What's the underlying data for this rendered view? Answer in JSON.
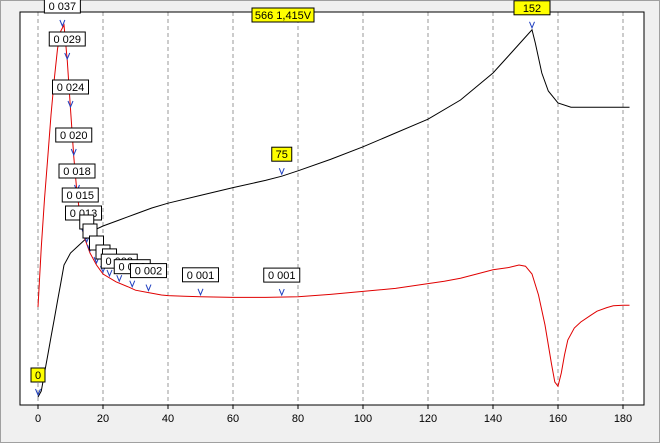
{
  "chart_data": {
    "type": "line",
    "title": "",
    "xlabel": "",
    "ylabel": "",
    "xlim": [
      0,
      182
    ],
    "xticks": [
      0,
      20,
      40,
      60,
      80,
      100,
      120,
      140,
      160,
      180
    ],
    "grid": "vertical dashed",
    "cursor_label": "566 1,415V",
    "colors": {
      "black_series": "#000000",
      "red_series": "#e00000",
      "highlight_tag": "#ffff00",
      "plain_tag": "#ffffff"
    },
    "series": [
      {
        "color": "#000000",
        "points": [
          [
            0,
            0
          ],
          [
            1,
            1
          ],
          [
            2,
            4
          ],
          [
            3,
            7
          ],
          [
            4,
            10
          ],
          [
            5,
            13
          ],
          [
            6,
            16
          ],
          [
            7,
            19
          ],
          [
            8,
            22
          ],
          [
            9,
            23
          ],
          [
            10,
            24
          ],
          [
            12,
            25
          ],
          [
            14,
            26
          ],
          [
            16,
            27
          ],
          [
            18,
            28
          ],
          [
            20,
            28.5
          ],
          [
            25,
            29.5
          ],
          [
            30,
            30.5
          ],
          [
            35,
            31.5
          ],
          [
            40,
            32.3
          ],
          [
            50,
            33.6
          ],
          [
            60,
            34.9
          ],
          [
            70,
            36.1
          ],
          [
            75,
            36.8
          ],
          [
            80,
            37.7
          ],
          [
            90,
            39.6
          ],
          [
            100,
            41.7
          ],
          [
            110,
            44
          ],
          [
            120,
            46.3
          ],
          [
            130,
            49.5
          ],
          [
            140,
            54
          ],
          [
            145,
            57
          ],
          [
            150,
            60
          ],
          [
            152,
            61.2
          ],
          [
            153,
            59
          ],
          [
            155,
            54
          ],
          [
            157,
            51
          ],
          [
            160,
            49
          ],
          [
            164,
            48.3
          ],
          [
            182,
            48.3
          ]
        ]
      },
      {
        "color": "#e00000",
        "points": [
          [
            0,
            15
          ],
          [
            1,
            25
          ],
          [
            2,
            33
          ],
          [
            3,
            40
          ],
          [
            4,
            47
          ],
          [
            5,
            53
          ],
          [
            6,
            58
          ],
          [
            7,
            61
          ],
          [
            8,
            62
          ],
          [
            9,
            56
          ],
          [
            10,
            48
          ],
          [
            11,
            40
          ],
          [
            12,
            34
          ],
          [
            13,
            30
          ],
          [
            14,
            27
          ],
          [
            16,
            24
          ],
          [
            18,
            22
          ],
          [
            20,
            20.5
          ],
          [
            24,
            19.2
          ],
          [
            28,
            18.3
          ],
          [
            30,
            17.8
          ],
          [
            34,
            17.4
          ],
          [
            38,
            17
          ],
          [
            40,
            16.9
          ],
          [
            45,
            16.8
          ],
          [
            50,
            16.7
          ],
          [
            60,
            16.6
          ],
          [
            70,
            16.6
          ],
          [
            80,
            16.7
          ],
          [
            90,
            17.1
          ],
          [
            100,
            17.6
          ],
          [
            110,
            18.1
          ],
          [
            120,
            18.9
          ],
          [
            125,
            19.3
          ],
          [
            130,
            19.8
          ],
          [
            135,
            20.5
          ],
          [
            140,
            21.2
          ],
          [
            145,
            21.6
          ],
          [
            148,
            22
          ],
          [
            150,
            21.8
          ],
          [
            152,
            20.5
          ],
          [
            154,
            17
          ],
          [
            156,
            12
          ],
          [
            158,
            5.5
          ],
          [
            159,
            2.5
          ],
          [
            160,
            1.8
          ],
          [
            161,
            4
          ],
          [
            162,
            7
          ],
          [
            163,
            9.5
          ],
          [
            165,
            11.5
          ],
          [
            167,
            12.5
          ],
          [
            170,
            13.6
          ],
          [
            172,
            14.3
          ],
          [
            175,
            14.9
          ],
          [
            177,
            15.2
          ],
          [
            180,
            15.3
          ],
          [
            182,
            15.3
          ]
        ]
      }
    ],
    "annotations": [
      {
        "text": "0",
        "x": 0,
        "series": 0,
        "highlight": true
      },
      {
        "text": "75",
        "x": 75,
        "series": 0,
        "highlight": true
      },
      {
        "text": "152",
        "x": 152,
        "series": 0,
        "highlight": true
      },
      {
        "text": "0 037",
        "x": 7.5,
        "series": 1,
        "highlight": false
      },
      {
        "text": "0 029",
        "x": 9,
        "series": 1,
        "highlight": false
      },
      {
        "text": "0 024",
        "x": 10,
        "series": 1,
        "highlight": false
      },
      {
        "text": "0 020",
        "x": 11,
        "series": 1,
        "highlight": false
      },
      {
        "text": "0 018",
        "x": 12,
        "series": 1,
        "highlight": false
      },
      {
        "text": "0 015",
        "x": 13,
        "series": 1,
        "highlight": false
      },
      {
        "text": "0 013",
        "x": 14,
        "series": 1,
        "highlight": false
      },
      {
        "text": "",
        "x": 15,
        "series": 1,
        "highlight": false
      },
      {
        "text": "",
        "x": 16,
        "series": 1,
        "highlight": false
      },
      {
        "text": "",
        "x": 18,
        "series": 1,
        "highlight": false
      },
      {
        "text": "",
        "x": 20,
        "series": 1,
        "highlight": false
      },
      {
        "text": "",
        "x": 22,
        "series": 1,
        "highlight": false
      },
      {
        "text": "0 003",
        "x": 25,
        "series": 1,
        "highlight": false
      },
      {
        "text": "0 002",
        "x": 29,
        "series": 1,
        "highlight": false
      },
      {
        "text": "0 002",
        "x": 34,
        "series": 1,
        "highlight": false
      },
      {
        "text": "0 001",
        "x": 50,
        "series": 1,
        "highlight": false
      },
      {
        "text": "0 001",
        "x": 75,
        "series": 1,
        "highlight": false
      }
    ]
  }
}
